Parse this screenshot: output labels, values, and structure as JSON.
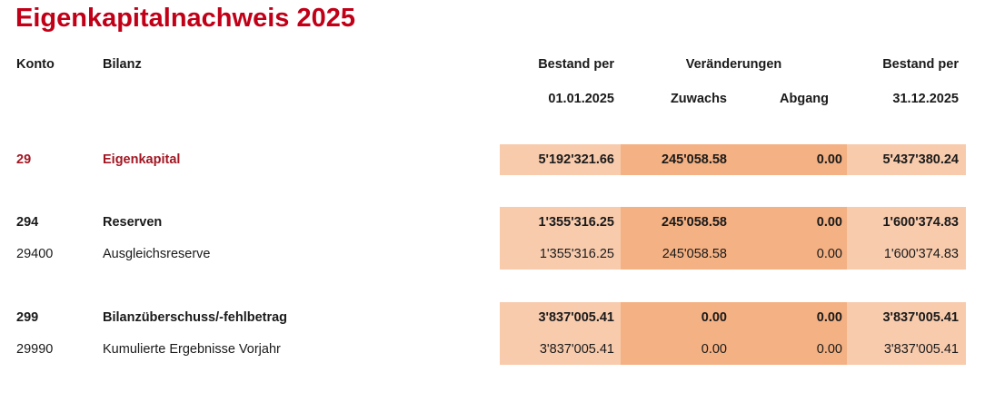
{
  "title": "Eigenkapitalnachweis 2025",
  "colors": {
    "title_red": "#C10018",
    "group_row_red": "#A21622",
    "light_orange": "#F8CBAD",
    "dark_orange": "#F4B183"
  },
  "header": {
    "konto": "Konto",
    "bilanz": "Bilanz",
    "bestand_per_start": "Bestand per",
    "veraenderungen": "Veränderungen",
    "bestand_per_end": "Bestand per",
    "date_start": "01.01.2025",
    "zuwachs": "Zuwachs",
    "abgang": "Abgang",
    "date_end": "31.12.2025"
  },
  "rows": [
    {
      "konto": "29",
      "bilanz": "Eigenkapital",
      "opening": "5'192'321.66",
      "zuwachs": "245'058.58",
      "abgang": "0.00",
      "closing": "5'437'380.24"
    },
    {
      "konto": "294",
      "bilanz": "Reserven",
      "opening": "1'355'316.25",
      "zuwachs": "245'058.58",
      "abgang": "0.00",
      "closing": "1'600'374.83"
    },
    {
      "konto": "29400",
      "bilanz": "Ausgleichsreserve",
      "opening": "1'355'316.25",
      "zuwachs": "245'058.58",
      "abgang": "0.00",
      "closing": "1'600'374.83"
    },
    {
      "konto": "299",
      "bilanz": "Bilanzüberschuss/-fehlbetrag",
      "opening": "3'837'005.41",
      "zuwachs": "0.00",
      "abgang": "0.00",
      "closing": "3'837'005.41"
    },
    {
      "konto": "29990",
      "bilanz": "Kumulierte Ergebnisse Vorjahr",
      "opening": "3'837'005.41",
      "zuwachs": "0.00",
      "abgang": "0.00",
      "closing": "3'837'005.41"
    }
  ]
}
